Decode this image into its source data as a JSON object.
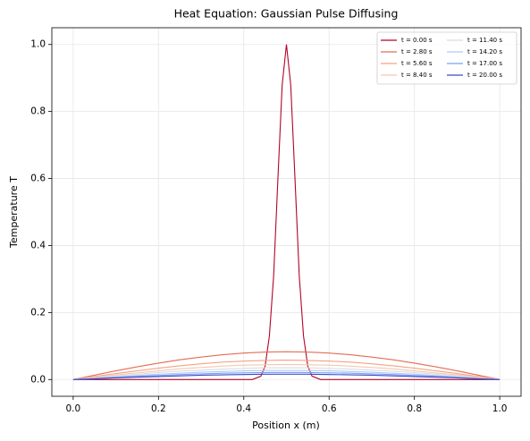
{
  "chart_data": {
    "type": "line",
    "title": "Heat Equation: Gaussian Pulse Diffusing",
    "xlabel": "Position x (m)",
    "ylabel": "Temperature T",
    "xlim": [
      -0.05,
      1.05
    ],
    "ylim": [
      -0.05,
      1.05
    ],
    "xticks": [
      {
        "value": 0,
        "label": "0.0"
      },
      {
        "value": 0.2,
        "label": "0.2"
      },
      {
        "value": 0.4,
        "label": "0.4"
      },
      {
        "value": 0.6,
        "label": "0.6"
      },
      {
        "value": 0.8,
        "label": "0.8"
      },
      {
        "value": 1,
        "label": "1.0"
      }
    ],
    "yticks": [
      {
        "value": 0,
        "label": "0.0"
      },
      {
        "value": 0.2,
        "label": "0.2"
      },
      {
        "value": 0.4,
        "label": "0.4"
      },
      {
        "value": 0.6,
        "label": "0.6"
      },
      {
        "value": 0.8,
        "label": "0.8"
      },
      {
        "value": 1,
        "label": "1.0"
      }
    ],
    "grid": true,
    "legend": "upper right",
    "legend_columns": 2,
    "series": [
      {
        "name": "t = 0.00 s",
        "color": "#b40426",
        "x": [
          0,
          0.42,
          0.44,
          0.45,
          0.46,
          0.47,
          0.48,
          0.49,
          0.5,
          0.51,
          0.52,
          0.53,
          0.54,
          0.55,
          0.56,
          0.58,
          1
        ],
        "values": [
          0,
          0,
          0.01,
          0.04,
          0.13,
          0.31,
          0.6,
          0.88,
          1,
          0.88,
          0.6,
          0.31,
          0.13,
          0.04,
          0.01,
          0,
          0
        ]
      },
      {
        "name": "t = 2.80 s",
        "color": "#e36c55",
        "x": [
          0,
          0.05,
          0.1,
          0.15,
          0.2,
          0.25,
          0.3,
          0.35,
          0.4,
          0.45,
          0.5,
          0.55,
          0.6,
          0.65,
          0.7,
          0.75,
          0.8,
          0.85,
          0.9,
          0.95,
          1
        ],
        "values": [
          0,
          0.013,
          0.026,
          0.038,
          0.049,
          0.059,
          0.067,
          0.074,
          0.079,
          0.082,
          0.083,
          0.082,
          0.079,
          0.074,
          0.067,
          0.059,
          0.049,
          0.038,
          0.026,
          0.013,
          0
        ]
      },
      {
        "name": "t = 5.60 s",
        "color": "#f4a383",
        "x": [
          0,
          0.05,
          0.1,
          0.15,
          0.2,
          0.25,
          0.3,
          0.35,
          0.4,
          0.45,
          0.5,
          0.55,
          0.6,
          0.65,
          0.7,
          0.75,
          0.8,
          0.85,
          0.9,
          0.95,
          1
        ],
        "values": [
          0,
          0.009,
          0.018,
          0.026,
          0.034,
          0.041,
          0.047,
          0.052,
          0.055,
          0.057,
          0.058,
          0.057,
          0.055,
          0.052,
          0.047,
          0.041,
          0.034,
          0.026,
          0.018,
          0.009,
          0
        ]
      },
      {
        "name": "t = 8.40 s",
        "color": "#f3c8b2",
        "x": [
          0,
          0.05,
          0.1,
          0.15,
          0.2,
          0.25,
          0.3,
          0.35,
          0.4,
          0.45,
          0.5,
          0.55,
          0.6,
          0.65,
          0.7,
          0.75,
          0.8,
          0.85,
          0.9,
          0.95,
          1
        ],
        "values": [
          0,
          0.007,
          0.014,
          0.02,
          0.026,
          0.032,
          0.036,
          0.04,
          0.043,
          0.044,
          0.045,
          0.044,
          0.043,
          0.04,
          0.036,
          0.032,
          0.026,
          0.02,
          0.014,
          0.007,
          0
        ]
      },
      {
        "name": "t = 11.40 s",
        "color": "#dddcdc",
        "x": [
          0,
          0.05,
          0.1,
          0.15,
          0.2,
          0.25,
          0.3,
          0.35,
          0.4,
          0.45,
          0.5,
          0.55,
          0.6,
          0.65,
          0.7,
          0.75,
          0.8,
          0.85,
          0.9,
          0.95,
          1
        ],
        "values": [
          0,
          0.005,
          0.011,
          0.016,
          0.021,
          0.025,
          0.028,
          0.031,
          0.033,
          0.035,
          0.035,
          0.035,
          0.033,
          0.031,
          0.028,
          0.025,
          0.021,
          0.016,
          0.011,
          0.005,
          0
        ]
      },
      {
        "name": "t = 14.20 s",
        "color": "#aec9fc",
        "x": [
          0,
          0.05,
          0.1,
          0.15,
          0.2,
          0.25,
          0.3,
          0.35,
          0.4,
          0.45,
          0.5,
          0.55,
          0.6,
          0.65,
          0.7,
          0.75,
          0.8,
          0.85,
          0.9,
          0.95,
          1
        ],
        "values": [
          0,
          0.004,
          0.008,
          0.012,
          0.016,
          0.019,
          0.022,
          0.024,
          0.026,
          0.027,
          0.027,
          0.027,
          0.026,
          0.024,
          0.022,
          0.019,
          0.016,
          0.012,
          0.008,
          0.004,
          0
        ]
      },
      {
        "name": "t = 17.00 s",
        "color": "#7b9ff9",
        "x": [
          0,
          0.05,
          0.1,
          0.15,
          0.2,
          0.25,
          0.3,
          0.35,
          0.4,
          0.45,
          0.5,
          0.55,
          0.6,
          0.65,
          0.7,
          0.75,
          0.8,
          0.85,
          0.9,
          0.95,
          1
        ],
        "values": [
          0,
          0.003,
          0.006,
          0.01,
          0.012,
          0.015,
          0.017,
          0.019,
          0.02,
          0.021,
          0.021,
          0.021,
          0.02,
          0.019,
          0.017,
          0.015,
          0.012,
          0.01,
          0.006,
          0.003,
          0
        ]
      },
      {
        "name": "t = 20.00 s",
        "color": "#3b4cc0",
        "x": [
          0,
          0.05,
          0.1,
          0.15,
          0.2,
          0.25,
          0.3,
          0.35,
          0.4,
          0.45,
          0.5,
          0.55,
          0.6,
          0.65,
          0.7,
          0.75,
          0.8,
          0.85,
          0.9,
          0.95,
          1
        ],
        "values": [
          0,
          0.002,
          0.005,
          0.007,
          0.009,
          0.011,
          0.013,
          0.014,
          0.015,
          0.016,
          0.016,
          0.016,
          0.015,
          0.014,
          0.013,
          0.011,
          0.009,
          0.007,
          0.005,
          0.002,
          0
        ]
      }
    ]
  }
}
